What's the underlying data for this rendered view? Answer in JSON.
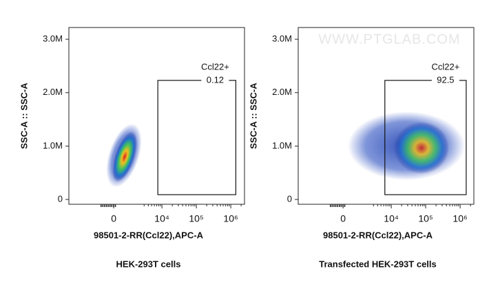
{
  "chart_data": [
    {
      "type": "scatter",
      "title": "HEK-293T cells",
      "xlabel": "98501-2-RR(Ccl22),APC-A",
      "ylabel": "SSC-A :: SSC-A",
      "xscale": "biexponential",
      "xlim": [
        -8000,
        2500000
      ],
      "ylim": [
        -90000,
        3220000
      ],
      "xticks": [
        0,
        {
          "value": 10000,
          "label": "10⁴"
        },
        {
          "value": 100000,
          "label": "10⁵"
        },
        {
          "value": 1000000,
          "label": "10⁶"
        }
      ],
      "yticks": [
        0,
        {
          "value": 1000000,
          "label": "1.0M"
        },
        {
          "value": 2000000,
          "label": "2.0M"
        },
        {
          "value": 3000000,
          "label": "3.0M"
        }
      ],
      "gates": [
        {
          "name": "Ccl22+",
          "value": 0.12,
          "x": [
            7600,
            1400000
          ],
          "y": [
            90000,
            2230000
          ]
        }
      ]
    },
    {
      "type": "scatter",
      "title": "Transfected HEK-293T cells",
      "xlabel": "98501-2-RR(Ccl22),APC-A",
      "ylabel": "SSC-A :: SSC-A",
      "watermark": "WWW.PTGLAB.COM",
      "xscale": "biexponential",
      "xlim": [
        -8000,
        2500000
      ],
      "ylim": [
        -90000,
        3220000
      ],
      "xticks": [
        0,
        {
          "value": 10000,
          "label": "10⁴"
        },
        {
          "value": 100000,
          "label": "10⁵"
        },
        {
          "value": 1000000,
          "label": "10⁶"
        }
      ],
      "yticks": [
        0,
        {
          "value": 1000000,
          "label": "1.0M"
        },
        {
          "value": 2000000,
          "label": "2.0M"
        },
        {
          "value": 3000000,
          "label": "3.0M"
        }
      ],
      "gates": [
        {
          "name": "Ccl22+",
          "value": 92.5,
          "x": [
            6500,
            1500000
          ],
          "y": [
            90000,
            2230000
          ]
        }
      ]
    }
  ]
}
